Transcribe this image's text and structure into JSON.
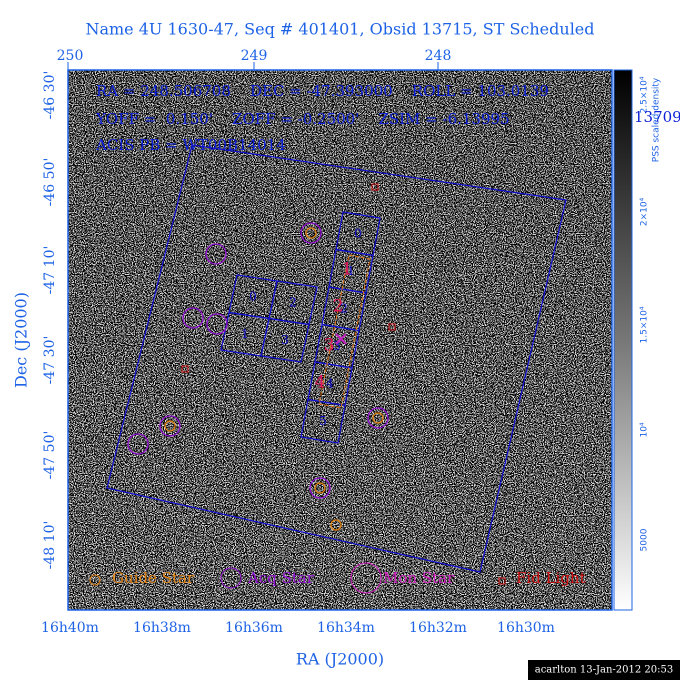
{
  "header": {
    "title": "Name 4U 1630-47, Seq # 401401, Obsid 13715, ST Scheduled"
  },
  "info": {
    "line1": "RA = 248.506708    DEC = -47.393000    ROLL = 103.0139",
    "line2": "YOFF =  0.150'    ZOFF = -0.2500'    ZSIM = -6.13995",
    "line3": "ACIS PB = WT00B14014",
    "overflow": "13709"
  },
  "top_axis": {
    "labels": [
      "250",
      "249",
      "248"
    ]
  },
  "left_axis": {
    "title": "Dec (J2000)",
    "labels": [
      "-46 30'",
      "-46 50'",
      "-47 10'",
      "-47 30'",
      "-47 50'",
      "-48 10'"
    ]
  },
  "bottom_axis": {
    "title": "RA (J2000)",
    "labels": [
      "16h40m",
      "16h38m",
      "16h36m",
      "16h34m",
      "16h32m",
      "16h30m"
    ]
  },
  "colorbar": {
    "title": "PSS scaled density",
    "labels": [
      "2.5×10⁴",
      "2×10⁴",
      "1.5×10⁴",
      "10⁴",
      "5000"
    ]
  },
  "acis_i": {
    "labels": [
      "0",
      "2",
      "1",
      "3"
    ]
  },
  "acis_s": {
    "labels": [
      "0",
      "1",
      "2",
      "3",
      "4",
      "5"
    ]
  },
  "subarray": {
    "labels": [
      "1",
      "2",
      "3",
      "4"
    ]
  },
  "legend": {
    "items": [
      "Guide Star",
      "Acq Star",
      "Mon Star",
      "Fid Light"
    ]
  },
  "footer": {
    "text": "acarlton 13-Jan-2012 20:53"
  }
}
